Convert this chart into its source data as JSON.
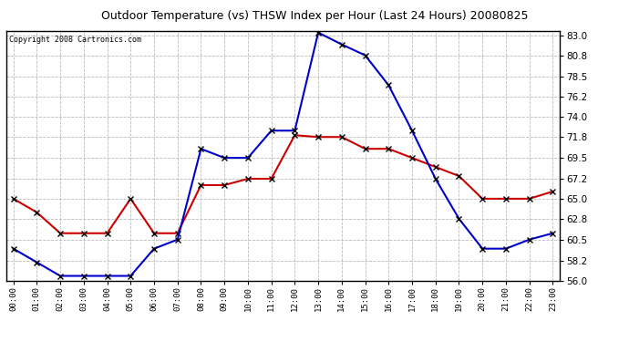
{
  "title": "Outdoor Temperature (vs) THSW Index per Hour (Last 24 Hours) 20080825",
  "copyright": "Copyright 2008 Cartronics.com",
  "hours": [
    0,
    1,
    2,
    3,
    4,
    5,
    6,
    7,
    8,
    9,
    10,
    11,
    12,
    13,
    14,
    15,
    16,
    17,
    18,
    19,
    20,
    21,
    22,
    23
  ],
  "hour_labels": [
    "00:00",
    "01:00",
    "02:00",
    "03:00",
    "04:00",
    "05:00",
    "06:00",
    "07:00",
    "08:00",
    "09:00",
    "10:00",
    "11:00",
    "12:00",
    "13:00",
    "14:00",
    "15:00",
    "16:00",
    "17:00",
    "18:00",
    "19:00",
    "20:00",
    "21:00",
    "22:00",
    "23:00"
  ],
  "temp_red": [
    65.0,
    63.5,
    61.2,
    61.2,
    61.2,
    65.0,
    61.2,
    61.2,
    66.5,
    66.5,
    67.2,
    67.2,
    72.0,
    71.8,
    71.8,
    70.5,
    70.5,
    69.5,
    68.5,
    67.5,
    65.0,
    65.0,
    65.0,
    65.8
  ],
  "thsw_blue": [
    59.5,
    58.0,
    56.5,
    56.5,
    56.5,
    56.5,
    59.5,
    60.5,
    70.5,
    69.5,
    69.5,
    72.5,
    72.5,
    83.3,
    82.0,
    80.8,
    77.5,
    72.5,
    67.2,
    62.8,
    59.5,
    59.5,
    60.5,
    61.2
  ],
  "ylim": [
    56.0,
    83.5
  ],
  "yticks": [
    56.0,
    58.2,
    60.5,
    62.8,
    65.0,
    67.2,
    69.5,
    71.8,
    74.0,
    76.2,
    78.5,
    80.8,
    83.0
  ],
  "bg_color": "#ffffff",
  "plot_bg": "#ffffff",
  "grid_color": "#bbbbbb",
  "blue_color": "#0000cc",
  "red_color": "#cc0000",
  "title_color": "#000000",
  "marker": "x",
  "marker_color": "#000000",
  "marker_size": 4,
  "linewidth": 1.5
}
